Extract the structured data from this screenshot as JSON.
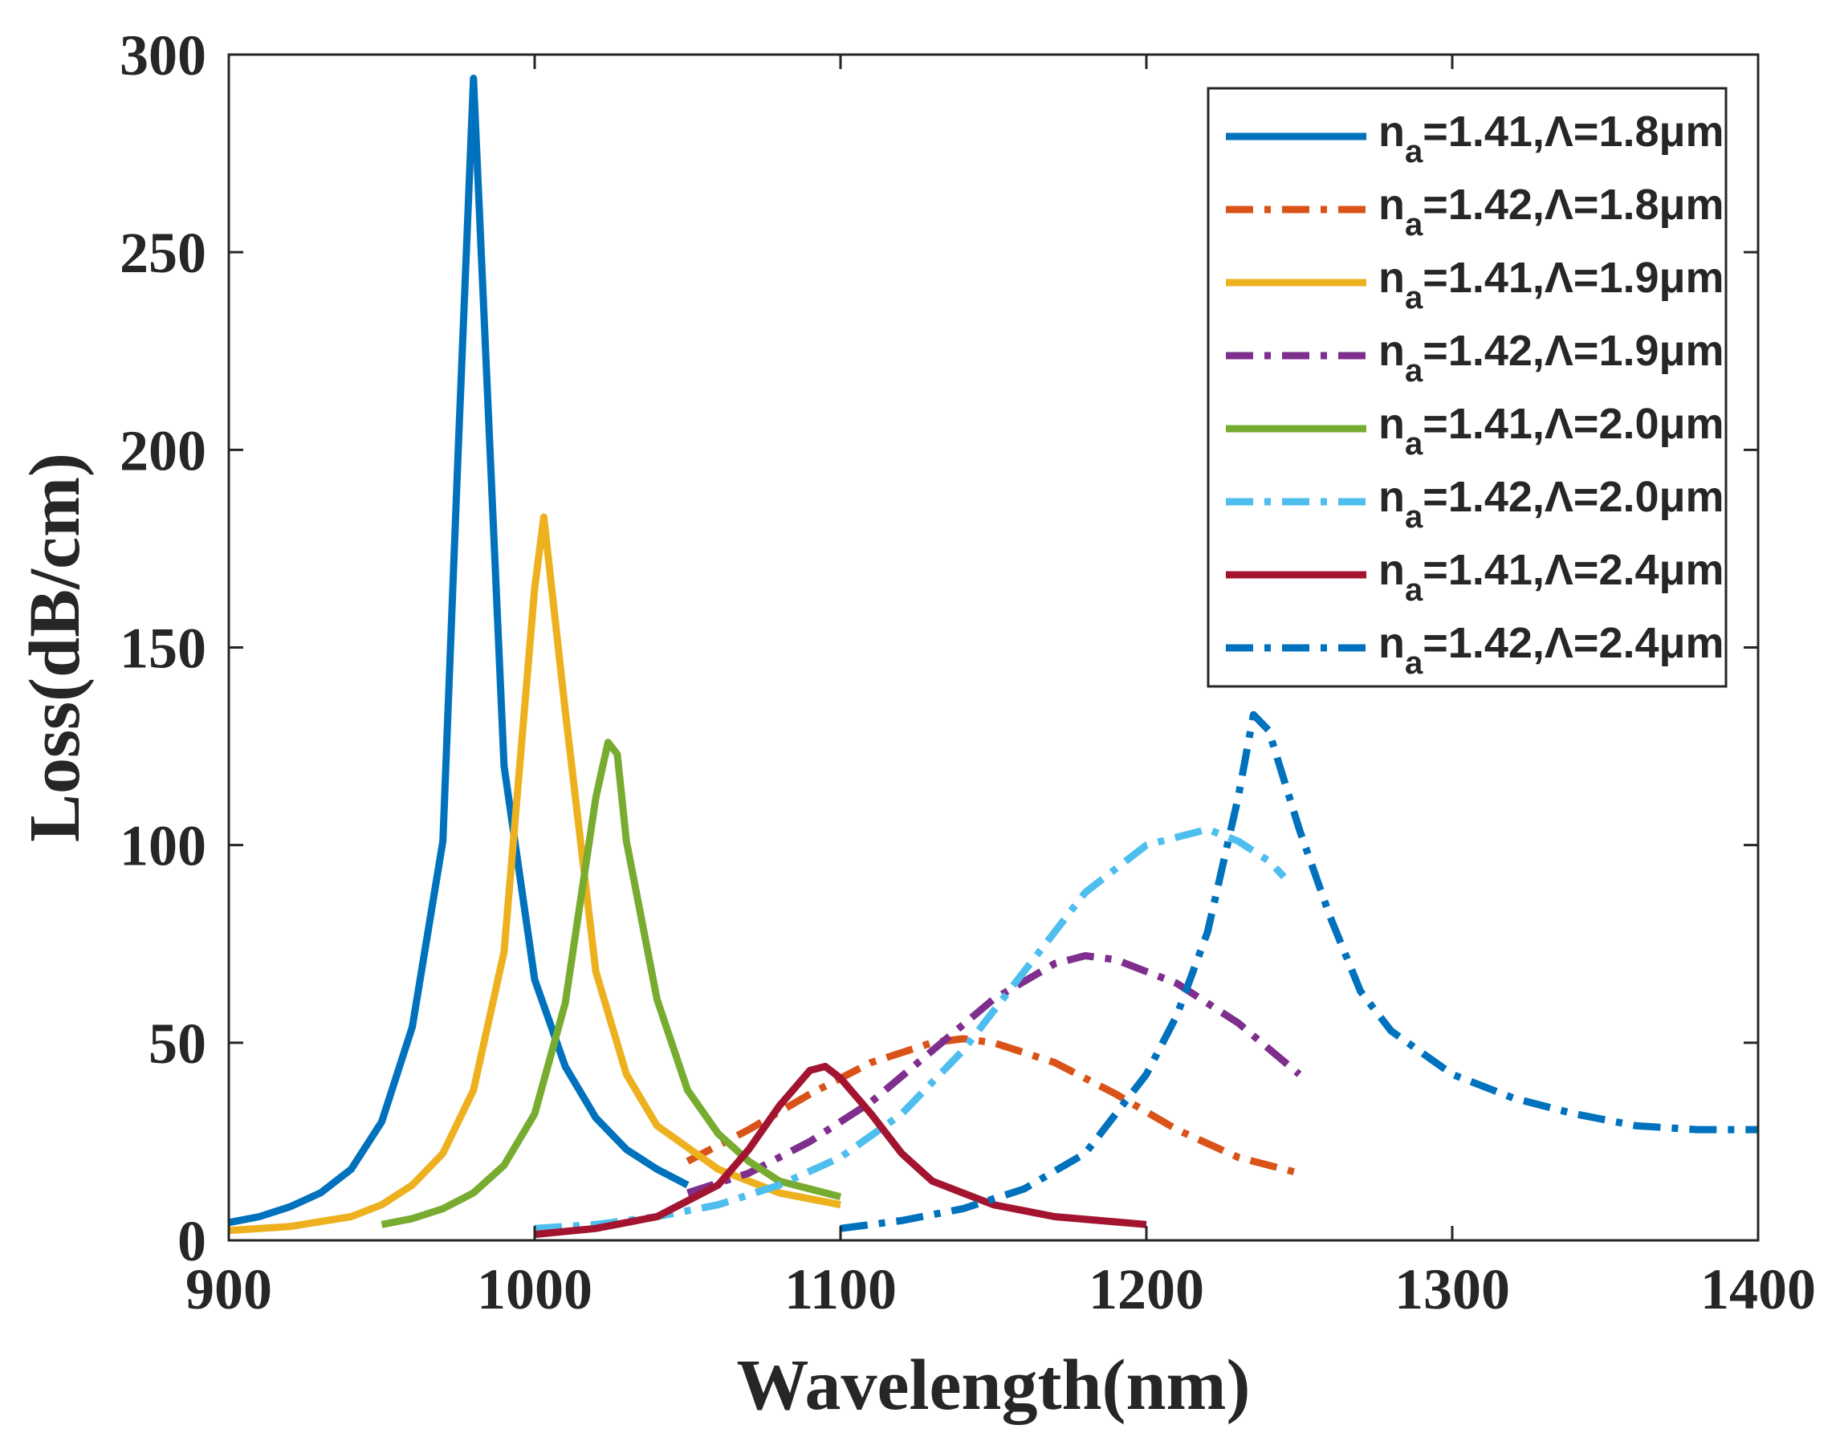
{
  "chart_data": {
    "type": "line",
    "title": "",
    "xlabel": "Wavelength(nm)",
    "ylabel": "Loss(dB/cm)",
    "xlim": [
      900,
      1400
    ],
    "ylim": [
      0,
      300
    ],
    "xticks": [
      900,
      1000,
      1100,
      1200,
      1300,
      1400
    ],
    "yticks": [
      0,
      50,
      100,
      150,
      200,
      250,
      300
    ],
    "legend_position": "top-right",
    "series": [
      {
        "name": "na=1.41,Λ=1.8μm",
        "label_main": "n",
        "label_sub": "a",
        "label_rest": "=1.41,Λ=1.8μm",
        "color": "#0072BD",
        "dash": "solid",
        "x": [
          900,
          910,
          920,
          930,
          940,
          950,
          960,
          970,
          975,
          980,
          990,
          1000,
          1010,
          1020,
          1030,
          1040,
          1050
        ],
        "y": [
          4.5,
          6,
          8.5,
          12,
          18,
          30,
          54,
          101,
          200,
          294,
          120,
          66,
          44,
          31,
          23,
          18,
          14
        ]
      },
      {
        "name": "na=1.42,Λ=1.8μm",
        "label_main": "n",
        "label_sub": "a",
        "label_rest": "=1.42,Λ=1.8μm",
        "color": "#D95319",
        "dash": "dashdot",
        "x": [
          1050,
          1070,
          1090,
          1110,
          1130,
          1140,
          1150,
          1170,
          1190,
          1210,
          1230,
          1250
        ],
        "y": [
          20,
          28,
          37,
          45,
          50,
          51,
          50,
          45,
          37,
          28,
          21,
          17
        ]
      },
      {
        "name": "na=1.41,Λ=1.9μm",
        "label_main": "n",
        "label_sub": "a",
        "label_rest": "=1.41,Λ=1.9μm",
        "color": "#EDB120",
        "dash": "solid",
        "x": [
          900,
          920,
          940,
          950,
          960,
          970,
          980,
          990,
          1000,
          1003,
          1010,
          1020,
          1030,
          1040,
          1060,
          1080,
          1100
        ],
        "y": [
          2.5,
          3.5,
          6,
          9,
          14,
          22,
          38,
          73,
          165,
          183,
          134,
          68,
          42,
          29,
          18,
          12,
          9
        ]
      },
      {
        "name": "na=1.42,Λ=1.9μm",
        "label_main": "n",
        "label_sub": "a",
        "label_rest": "=1.42,Λ=1.9μm",
        "color": "#7E2F8E",
        "dash": "dashdot",
        "x": [
          1050,
          1070,
          1090,
          1110,
          1130,
          1150,
          1170,
          1180,
          1190,
          1210,
          1230,
          1250
        ],
        "y": [
          12,
          17,
          25,
          35,
          48,
          61,
          70,
          72,
          71,
          65,
          55,
          42
        ]
      },
      {
        "name": "na=1.41,Λ=2.0μm",
        "label_main": "n",
        "label_sub": "a",
        "label_rest": "=1.41,Λ=2.0μm",
        "color": "#77AC30",
        "dash": "solid",
        "x": [
          950,
          960,
          970,
          980,
          990,
          1000,
          1010,
          1020,
          1024,
          1027,
          1030,
          1040,
          1050,
          1060,
          1070,
          1080,
          1100
        ],
        "y": [
          4,
          5.5,
          8,
          12,
          19,
          32,
          60,
          112,
          126,
          123,
          101,
          61,
          38,
          27,
          20,
          15,
          11
        ]
      },
      {
        "name": "na=1.42,Λ=2.0μm",
        "label_main": "n",
        "label_sub": "a",
        "label_rest": "=1.42,Λ=2.0μm",
        "color": "#4DBEEE",
        "dash": "dashdot",
        "x": [
          1000,
          1020,
          1040,
          1060,
          1080,
          1100,
          1120,
          1140,
          1160,
          1180,
          1200,
          1210,
          1220,
          1230,
          1240,
          1245
        ],
        "y": [
          3,
          4,
          6,
          9,
          14,
          21,
          32,
          48,
          68,
          88,
          100,
          102,
          104,
          101,
          96,
          92
        ]
      },
      {
        "name": "na=1.41,Λ=2.4μm",
        "label_main": "n",
        "label_sub": "a",
        "label_rest": "=1.41,Λ=2.4μm",
        "color": "#A2142F",
        "dash": "solid",
        "x": [
          1000,
          1020,
          1040,
          1060,
          1070,
          1080,
          1090,
          1095,
          1100,
          1110,
          1120,
          1130,
          1150,
          1170,
          1200
        ],
        "y": [
          1.5,
          3,
          6,
          14,
          23,
          34,
          43,
          44,
          41,
          32,
          22,
          15,
          9,
          6,
          4
        ]
      },
      {
        "name": "na=1.42,Λ=2.4μm",
        "label_main": "n",
        "label_sub": "a",
        "label_rest": "=1.42,Λ=2.4μm",
        "color": "#0072BD",
        "dash": "dashdot",
        "x": [
          1100,
          1120,
          1140,
          1160,
          1180,
          1200,
          1210,
          1220,
          1230,
          1235,
          1240,
          1250,
          1260,
          1270,
          1280,
          1300,
          1320,
          1340,
          1360,
          1380,
          1400
        ],
        "y": [
          3,
          5,
          8,
          13,
          22,
          42,
          57,
          78,
          112,
          133,
          129,
          104,
          82,
          63,
          53,
          42,
          36,
          32,
          29,
          28,
          28
        ]
      }
    ]
  }
}
